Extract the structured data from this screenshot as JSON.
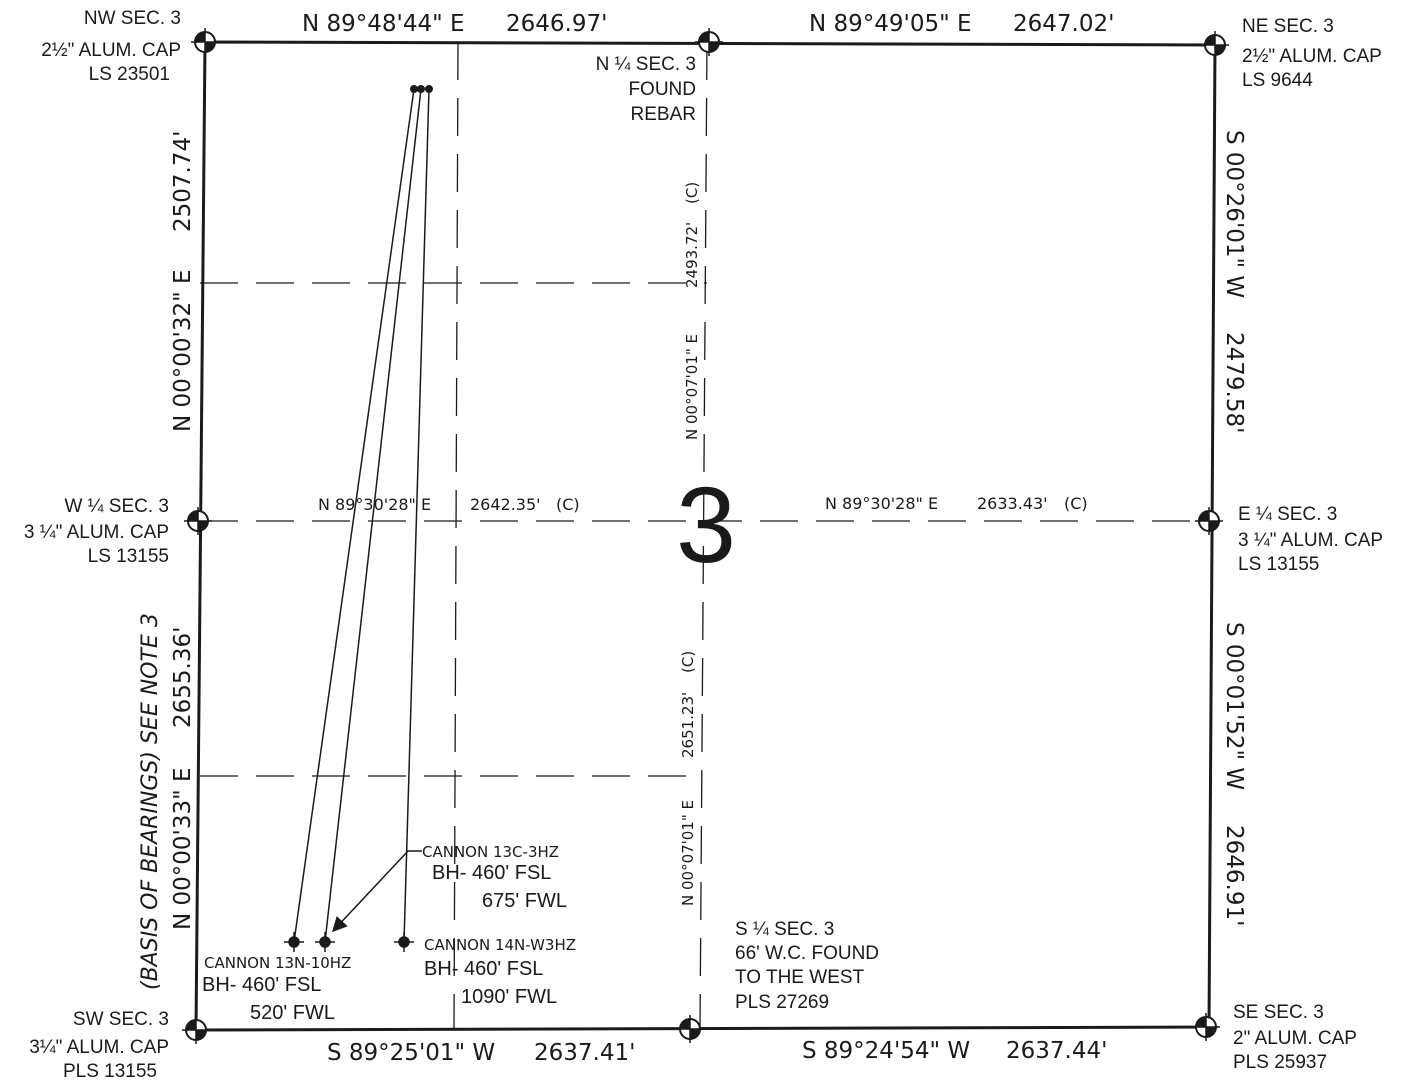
{
  "section_number": "3",
  "boundary": {
    "north_west": {
      "bearing": "N 89°48'44\" E",
      "distance": "2646.97'"
    },
    "north_east": {
      "bearing": "N 89°49'05\" E",
      "distance": "2647.02'"
    },
    "south_west": {
      "bearing": "S 89°25'01\" W",
      "distance": "2637.41'"
    },
    "south_east": {
      "bearing": "S 89°24'54\" W",
      "distance": "2637.44'"
    },
    "west_north": {
      "bearing": "N 00°00'32\" E",
      "distance": "2507.74'"
    },
    "west_south": {
      "basis": "(BASIS OF BEARINGS) SEE NOTE 3",
      "bearing": "N 00°00'33\" E",
      "distance": "2655.36'"
    },
    "east_north": {
      "bearing": "S 00°26'01\" W",
      "distance": "2479.58'"
    },
    "east_south": {
      "bearing": "S 00°01'52\" W",
      "distance": "2646.91'"
    }
  },
  "internal": {
    "center_west": {
      "bearing": "N 89°30'28\" E",
      "distance": "2642.35'",
      "calc": "(C)"
    },
    "center_east": {
      "bearing": "N 89°30'28\" E",
      "distance": "2633.43'",
      "calc": "(C)"
    },
    "center_north": {
      "bearing": "N 00°07'01\" E",
      "distance": "2493.72'",
      "calc": "(C)"
    },
    "center_south": {
      "bearing": "N 00°07'01\" E",
      "distance": "2651.23'",
      "calc": "(C)"
    }
  },
  "corners": {
    "nw": [
      "NW SEC. 3",
      "2½\" ALUM. CAP",
      "LS 23501"
    ],
    "n_quarter": [
      "N ¼ SEC. 3",
      "FOUND",
      "REBAR"
    ],
    "ne": [
      "NE SEC. 3",
      "2½\" ALUM. CAP",
      "LS 9644"
    ],
    "w_quarter": [
      "W ¼ SEC. 3",
      "3 ¼\" ALUM. CAP",
      "LS 13155"
    ],
    "e_quarter": [
      "E ¼ SEC. 3",
      "3 ¼\" ALUM. CAP",
      "LS 13155"
    ],
    "sw": [
      "SW SEC. 3",
      "3¼\" ALUM. CAP",
      "PLS 13155"
    ],
    "s_quarter": [
      "S ¼  SEC. 3",
      "66' W.C. FOUND",
      "TO THE WEST",
      "PLS 27269"
    ],
    "se": [
      "SE SEC. 3",
      "2\" ALUM. CAP",
      "PLS 25937"
    ]
  },
  "wells": {
    "w3hz_13c": {
      "name": "CANNON 13C-3HZ",
      "fsl": "BH- 460' FSL",
      "fwl": "675' FWL"
    },
    "w10hz_13n": {
      "name": "CANNON 13N-10HZ",
      "fsl": "BH- 460' FSL",
      "fwl": "520' FWL"
    },
    "w3hz_14n": {
      "name": "CANNON 14N-W3HZ",
      "fsl": "BH- 460' FSL",
      "fwl": "1090' FWL"
    }
  }
}
